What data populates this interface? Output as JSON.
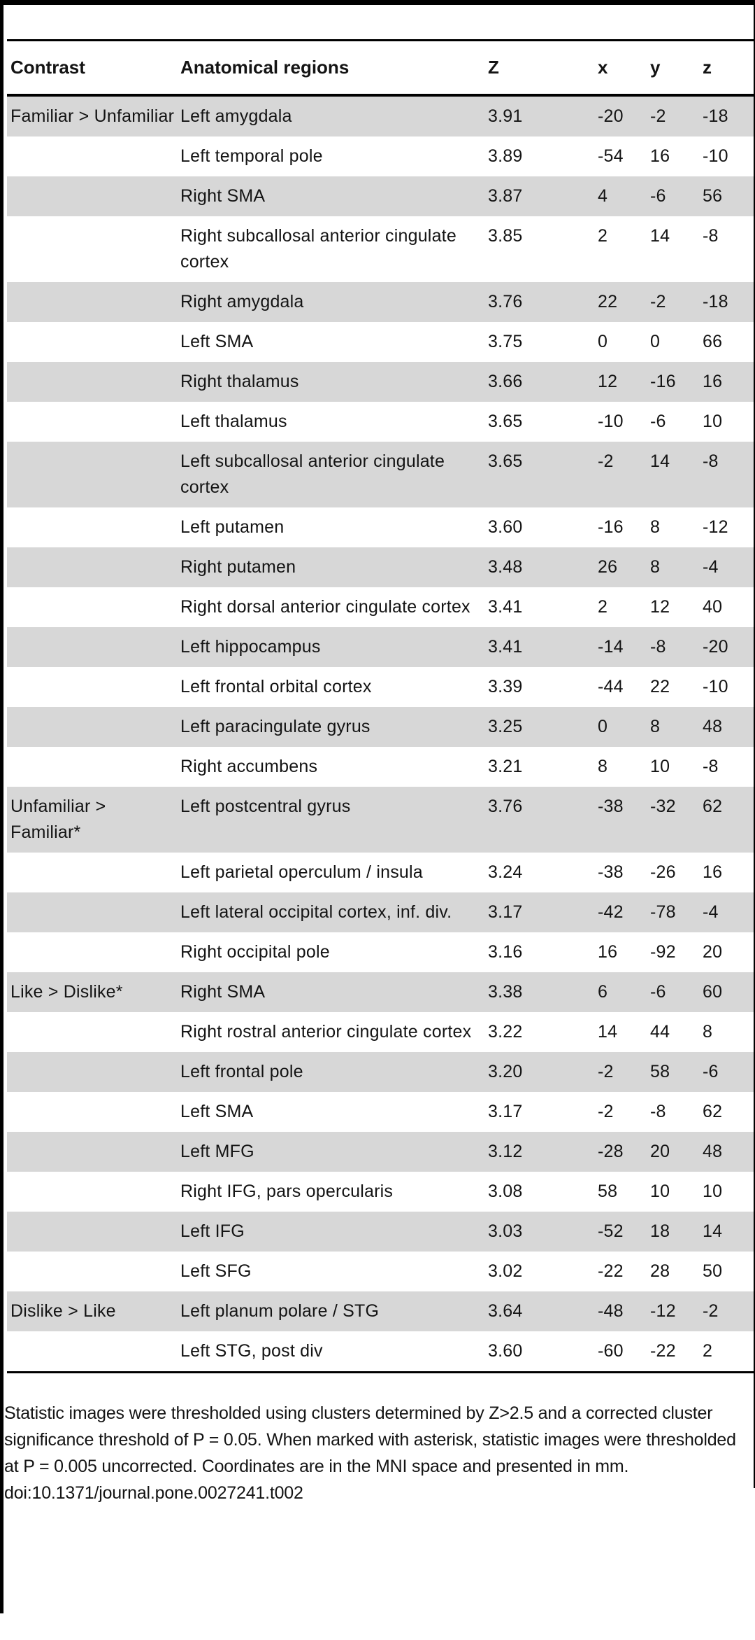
{
  "table": {
    "columns": [
      "Contrast",
      "Anatomical regions",
      "Z",
      "x",
      "y",
      "z"
    ],
    "rows": [
      {
        "contrast": "Familiar > Unfamiliar",
        "region": "Left amygdala",
        "z_stat": "3.91",
        "x": "-20",
        "y": "-2",
        "z": "-18"
      },
      {
        "contrast": "",
        "region": "Left temporal pole",
        "z_stat": "3.89",
        "x": "-54",
        "y": "16",
        "z": "-10"
      },
      {
        "contrast": "",
        "region": "Right SMA",
        "z_stat": "3.87",
        "x": "4",
        "y": "-6",
        "z": "56"
      },
      {
        "contrast": "",
        "region": "Right subcallosal anterior cingulate cortex",
        "z_stat": "3.85",
        "x": "2",
        "y": "14",
        "z": "-8"
      },
      {
        "contrast": "",
        "region": "Right amygdala",
        "z_stat": "3.76",
        "x": "22",
        "y": "-2",
        "z": "-18"
      },
      {
        "contrast": "",
        "region": "Left SMA",
        "z_stat": "3.75",
        "x": "0",
        "y": "0",
        "z": "66"
      },
      {
        "contrast": "",
        "region": "Right thalamus",
        "z_stat": "3.66",
        "x": "12",
        "y": "-16",
        "z": "16"
      },
      {
        "contrast": "",
        "region": "Left thalamus",
        "z_stat": "3.65",
        "x": "-10",
        "y": "-6",
        "z": "10"
      },
      {
        "contrast": "",
        "region": "Left subcallosal anterior cingulate cortex",
        "z_stat": "3.65",
        "x": "-2",
        "y": "14",
        "z": "-8"
      },
      {
        "contrast": "",
        "region": "Left putamen",
        "z_stat": "3.60",
        "x": "-16",
        "y": "8",
        "z": "-12"
      },
      {
        "contrast": "",
        "region": "Right putamen",
        "z_stat": "3.48",
        "x": "26",
        "y": "8",
        "z": "-4"
      },
      {
        "contrast": "",
        "region": "Right dorsal anterior cingulate cortex",
        "z_stat": "3.41",
        "x": "2",
        "y": "12",
        "z": "40"
      },
      {
        "contrast": "",
        "region": "Left hippocampus",
        "z_stat": "3.41",
        "x": "-14",
        "y": "-8",
        "z": "-20"
      },
      {
        "contrast": "",
        "region": "Left frontal orbital cortex",
        "z_stat": "3.39",
        "x": "-44",
        "y": "22",
        "z": "-10"
      },
      {
        "contrast": "",
        "region": "Left paracingulate gyrus",
        "z_stat": "3.25",
        "x": "0",
        "y": "8",
        "z": "48"
      },
      {
        "contrast": "",
        "region": "Right accumbens",
        "z_stat": "3.21",
        "x": "8",
        "y": "10",
        "z": "-8"
      },
      {
        "contrast": "Unfamiliar > Familiar*",
        "region": "Left postcentral gyrus",
        "z_stat": "3.76",
        "x": "-38",
        "y": "-32",
        "z": "62"
      },
      {
        "contrast": "",
        "region": "Left parietal operculum / insula",
        "z_stat": "3.24",
        "x": "-38",
        "y": "-26",
        "z": "16"
      },
      {
        "contrast": "",
        "region": "Left lateral occipital cortex, inf. div.",
        "z_stat": "3.17",
        "x": "-42",
        "y": "-78",
        "z": "-4"
      },
      {
        "contrast": "",
        "region": "Right occipital pole",
        "z_stat": "3.16",
        "x": "16",
        "y": "-92",
        "z": "20"
      },
      {
        "contrast": "Like > Dislike*",
        "region": "Right SMA",
        "z_stat": "3.38",
        "x": "6",
        "y": "-6",
        "z": "60"
      },
      {
        "contrast": "",
        "region": "Right rostral anterior cingulate cortex",
        "z_stat": "3.22",
        "x": "14",
        "y": "44",
        "z": "8"
      },
      {
        "contrast": "",
        "region": "Left frontal pole",
        "z_stat": "3.20",
        "x": "-2",
        "y": "58",
        "z": "-6"
      },
      {
        "contrast": "",
        "region": "Left SMA",
        "z_stat": "3.17",
        "x": "-2",
        "y": "-8",
        "z": "62"
      },
      {
        "contrast": "",
        "region": "Left MFG",
        "z_stat": "3.12",
        "x": "-28",
        "y": "20",
        "z": "48"
      },
      {
        "contrast": "",
        "region": "Right IFG, pars opercularis",
        "z_stat": "3.08",
        "x": "58",
        "y": "10",
        "z": "10"
      },
      {
        "contrast": "",
        "region": "Left IFG",
        "z_stat": "3.03",
        "x": "-52",
        "y": "18",
        "z": "14"
      },
      {
        "contrast": "",
        "region": "Left SFG",
        "z_stat": "3.02",
        "x": "-22",
        "y": "28",
        "z": "50"
      },
      {
        "contrast": "Dislike > Like",
        "region": "Left planum polare / STG",
        "z_stat": "3.64",
        "x": "-48",
        "y": "-12",
        "z": "-2"
      },
      {
        "contrast": "",
        "region": "Left STG, post div",
        "z_stat": "3.60",
        "x": "-60",
        "y": "-22",
        "z": "2"
      }
    ]
  },
  "footnote": {
    "note": "Statistic images were thresholded using clusters determined by Z>2.5 and a corrected cluster significance threshold of P = 0.05. When marked with asterisk, statistic images were thresholded at P = 0.005 uncorrected. Coordinates are in the MNI space and presented in mm.",
    "doi": "doi:10.1371/journal.pone.0027241.t002"
  },
  "colors": {
    "row_stripe": "#d7d7d7",
    "rule": "#000000",
    "text": "#141414"
  }
}
